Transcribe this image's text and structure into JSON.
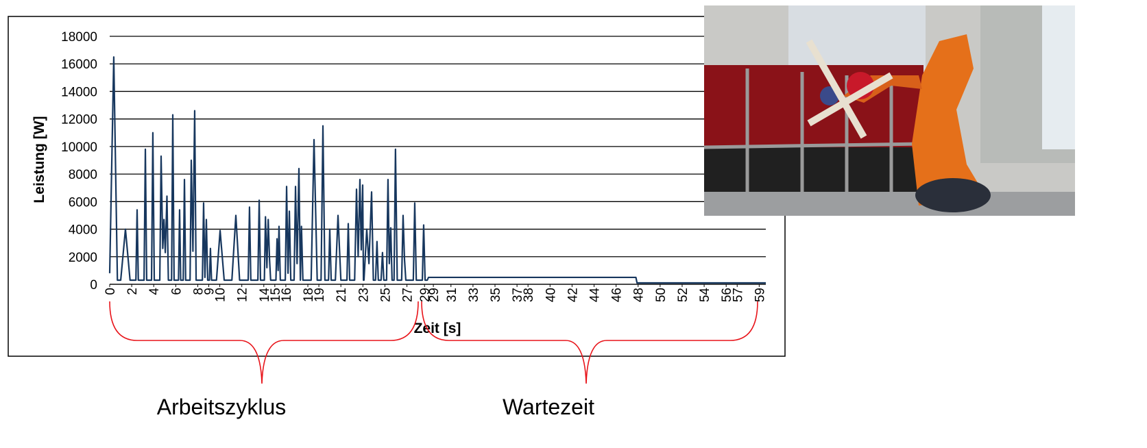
{
  "chart_data": {
    "type": "line",
    "x_label": "Zeit [s]",
    "y_label": "Leistung [W]",
    "annotations": [
      "Arbeitszyklus",
      "Wartezeit"
    ],
    "xlim": [
      0,
      59.6
    ],
    "xticks": [
      0,
      2,
      4,
      6,
      8,
      9,
      10,
      12,
      14,
      15,
      16,
      18,
      19,
      21,
      23,
      25,
      27,
      {
        "value": 28.6,
        "label": "29"
      },
      {
        "value": 29.4,
        "label": "29"
      },
      31,
      33,
      35,
      37,
      38,
      40,
      42,
      44,
      46,
      48,
      50,
      52,
      54,
      56,
      57,
      59
    ],
    "ylim": [
      0,
      18000
    ],
    "yticks": [
      0,
      2000,
      4000,
      6000,
      8000,
      10000,
      12000,
      14000,
      16000,
      18000
    ],
    "grid": true,
    "x": [
      0,
      0.37,
      0.7,
      1.0,
      1.43,
      1.85,
      2.38,
      2.49,
      2.6,
      3.12,
      3.24,
      3.36,
      3.8,
      3.92,
      4.05,
      4.55,
      4.67,
      4.82,
      4.93,
      5.05,
      5.2,
      5.33,
      5.62,
      5.73,
      5.85,
      6.25,
      6.35,
      6.45,
      6.68,
      6.79,
      6.9,
      7.3,
      7.41,
      7.56,
      7.72,
      7.85,
      8.42,
      8.53,
      8.65,
      8.78,
      8.9,
      9.06,
      9.15,
      9.25,
      9.7,
      10.03,
      10.4,
      11.1,
      11.46,
      11.8,
      12.58,
      12.7,
      12.82,
      13.46,
      13.58,
      13.7,
      14.05,
      14.15,
      14.28,
      14.4,
      14.52,
      14.62,
      15.1,
      15.2,
      15.3,
      15.38,
      15.5,
      15.95,
      16.07,
      16.2,
      16.32,
      16.45,
      16.75,
      16.88,
      17.02,
      17.19,
      17.32,
      17.42,
      17.55,
      18.3,
      18.56,
      18.85,
      19.2,
      19.37,
      19.55,
      19.88,
      19.99,
      20.12,
      20.5,
      20.74,
      21.0,
      21.55,
      21.67,
      21.8,
      22.25,
      22.42,
      22.57,
      22.73,
      22.85,
      22.98,
      23.05,
      23.1,
      23.35,
      23.55,
      23.79,
      23.95,
      24.15,
      24.28,
      24.4,
      24.65,
      24.78,
      24.9,
      25.15,
      25.28,
      25.4,
      25.53,
      25.65,
      25.83,
      25.96,
      26.12,
      26.52,
      26.65,
      26.78,
      26.9,
      27.58,
      27.71,
      27.85,
      28.4,
      28.52,
      28.65,
      28.85,
      28.96,
      47.8,
      47.9,
      59.6
    ],
    "series": [
      {
        "color": "#17375e",
        "values": [
          800,
          16500,
          300,
          300,
          4000,
          300,
          300,
          5400,
          300,
          300,
          9800,
          300,
          300,
          11000,
          300,
          300,
          9300,
          2600,
          4700,
          2300,
          6400,
          300,
          300,
          12300,
          300,
          300,
          5400,
          300,
          300,
          7600,
          300,
          300,
          9000,
          2400,
          12600,
          300,
          300,
          5900,
          500,
          4700,
          300,
          300,
          2600,
          300,
          300,
          3900,
          300,
          300,
          5000,
          300,
          300,
          5600,
          300,
          300,
          6100,
          300,
          300,
          4900,
          1200,
          4700,
          1800,
          300,
          300,
          3300,
          1000,
          4200,
          300,
          300,
          7100,
          800,
          5300,
          300,
          300,
          7100,
          1500,
          8400,
          300,
          4200,
          300,
          300,
          10500,
          300,
          300,
          11500,
          300,
          300,
          4000,
          300,
          300,
          5000,
          300,
          300,
          4400,
          300,
          300,
          6900,
          2000,
          7600,
          2500,
          7200,
          300,
          300,
          4000,
          1500,
          6700,
          300,
          300,
          3100,
          300,
          300,
          2300,
          300,
          300,
          7600,
          1500,
          4100,
          300,
          300,
          9800,
          300,
          300,
          5000,
          1800,
          300,
          300,
          5900,
          300,
          300,
          4300,
          300,
          300,
          500,
          500,
          100,
          100
        ]
      }
    ]
  }
}
